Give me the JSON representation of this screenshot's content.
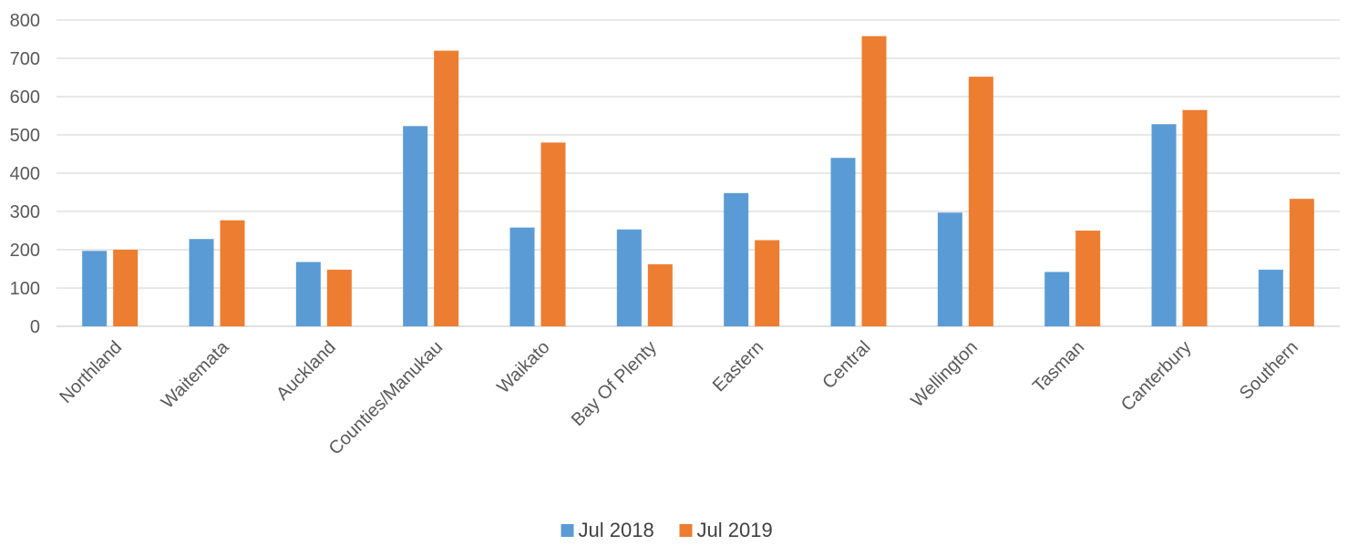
{
  "chart_data": {
    "type": "bar",
    "title": "",
    "xlabel": "",
    "ylabel": "",
    "ylim": [
      0,
      800
    ],
    "yticks": [
      0,
      100,
      200,
      300,
      400,
      500,
      600,
      700,
      800
    ],
    "grid": true,
    "legend_position": "bottom",
    "categories": [
      "Northland",
      "Waitemata",
      "Auckland",
      "Counties/Manukau",
      "Waikato",
      "Bay Of Plenty",
      "Eastern",
      "Central",
      "Wellington",
      "Tasman",
      "Canterbury",
      "Southern"
    ],
    "series": [
      {
        "name": "Jul 2018",
        "color": "#5b9bd5",
        "values": [
          197,
          228,
          168,
          523,
          258,
          253,
          348,
          440,
          297,
          142,
          528,
          148
        ]
      },
      {
        "name": "Jul 2019",
        "color": "#ed7d31",
        "values": [
          200,
          277,
          148,
          720,
          480,
          162,
          225,
          758,
          652,
          250,
          565,
          333
        ]
      }
    ]
  }
}
